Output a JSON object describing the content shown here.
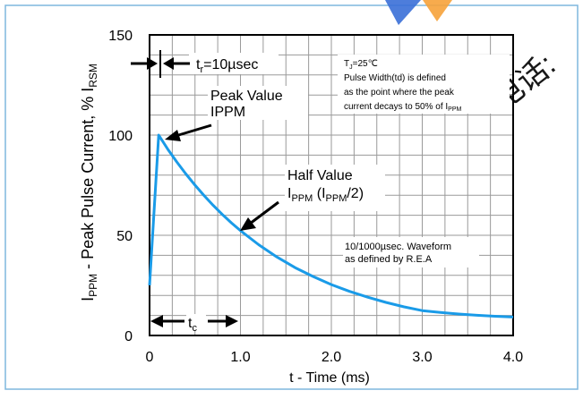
{
  "chart_data": {
    "type": "line",
    "xlabel": "t - Time (ms)",
    "ylabel": {
      "main": "I",
      "sub1": "PPM",
      "mid": " - Peak Pulse Current, % I",
      "sub2": "RSM"
    },
    "xlim": [
      0,
      4.0
    ],
    "ylim": [
      0,
      150
    ],
    "x_ticks": [
      0,
      1.0,
      2.0,
      3.0,
      4.0
    ],
    "x_tick_labels": [
      "0",
      "1.0",
      "2.0",
      "3.0",
      "4.0"
    ],
    "y_ticks": [
      0,
      50,
      100,
      150
    ],
    "y_tick_labels": [
      "0",
      "50",
      "100",
      "150"
    ],
    "grid": true,
    "series": [
      {
        "color": "#1a9be8",
        "x": [
          0,
          0.1,
          0.2,
          0.3,
          0.4,
          0.5,
          0.6,
          0.7,
          0.8,
          0.9,
          1.0,
          1.2,
          1.4,
          1.6,
          1.8,
          2.0,
          2.2,
          2.4,
          2.6,
          2.8,
          3.0,
          3.2,
          3.4,
          3.6,
          3.8,
          4.0
        ],
        "y": [
          25,
          100,
          93,
          86.6,
          80.6,
          75,
          69.8,
          64.9,
          60.4,
          56.2,
          52.3,
          45.3,
          39.2,
          33.9,
          29.4,
          25.4,
          22,
          19.1,
          16.5,
          14.3,
          12.4,
          11.5,
          10.7,
          10.1,
          9.6,
          9.2
        ]
      }
    ],
    "annotations": {
      "tr": {
        "main": "t",
        "sub": "r",
        "rest": "=10µsec"
      },
      "peak": [
        "Peak Value",
        "IPPM"
      ],
      "half": {
        "line1": "Half Value",
        "line2_main": "I",
        "line2_sub1": "PPM",
        "line2_mid": " (I",
        "line2_sub2": "PPM",
        "line2_end": "/2)"
      },
      "tc": {
        "main": "t",
        "sub": "c"
      },
      "conditions": {
        "tj_main": "T",
        "tj_sub": "J",
        "tj_rest": "=25℃",
        "line2": "Pulse Width(td) is defined",
        "line3": "as the point where the peak",
        "line4_main": "current decays to 50% of I",
        "line4_sub": "PPM"
      },
      "waveform": [
        "10/1000µsec. Waveform",
        "as defined by R.E.A"
      ]
    }
  },
  "watermark": {
    "text": "电话:",
    "colors": {
      "blue": "#3a6fd8",
      "orange": "#f7a23a"
    }
  }
}
